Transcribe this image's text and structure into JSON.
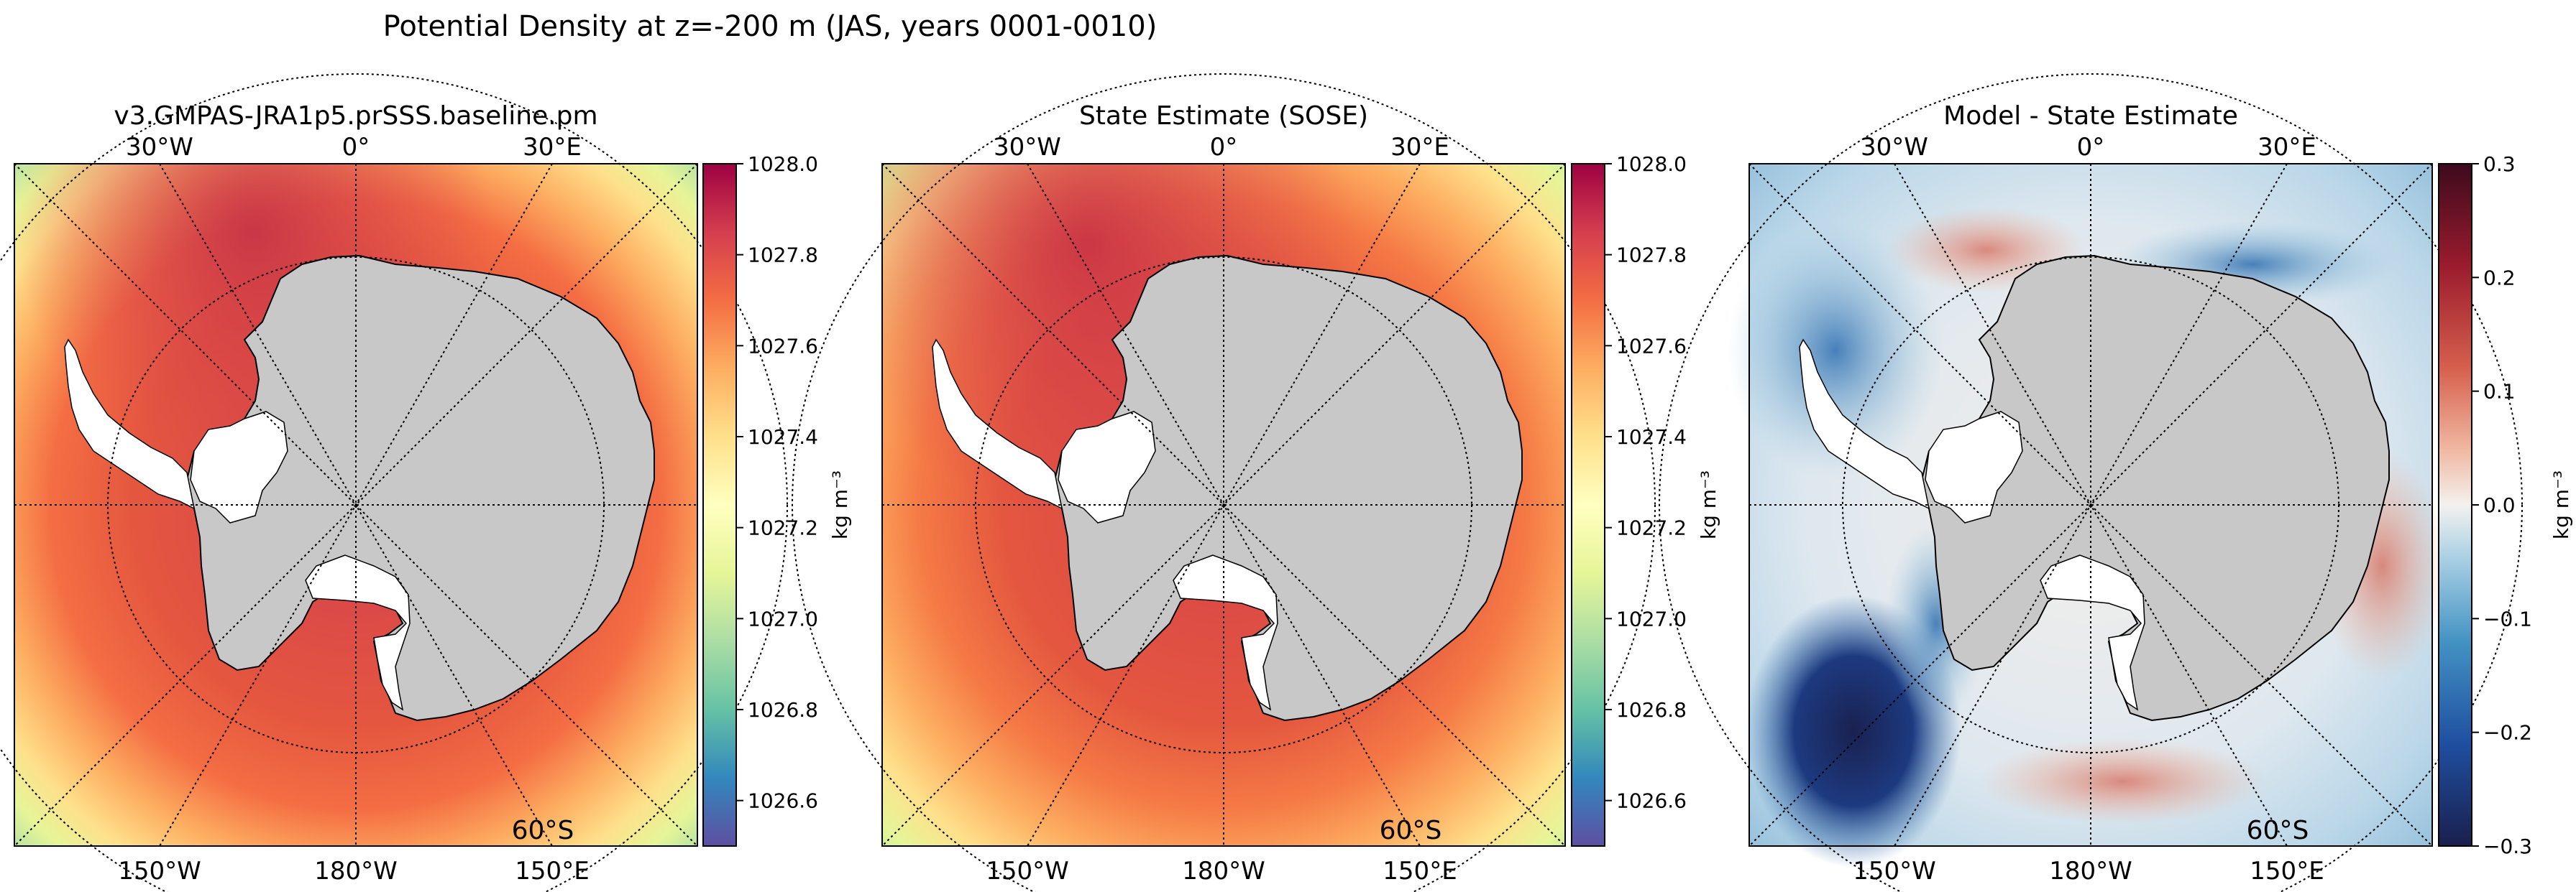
{
  "figure": {
    "suptitle": "Potential Density at z=-200 m (JAS, years 0001-0010)"
  },
  "chart_data": [
    {
      "type": "heatmap",
      "title": "v3.GMPAS-JRA1p5.prSSS.baseline.pm",
      "projection": "south polar stereographic",
      "top_lon_labels": [
        "30°W",
        "0°",
        "30°E"
      ],
      "bottom_lon_labels": [
        "150°W",
        "180°W",
        "150°E"
      ],
      "lat_label": "60°S",
      "colorbar": {
        "label": "kg m⁻³",
        "colormap": "Spectral_r",
        "range": [
          1026.5,
          1028.0
        ],
        "ticks": [
          "1026.6",
          "1026.8",
          "1027.0",
          "1027.2",
          "1027.4",
          "1027.6",
          "1027.8",
          "1028.0"
        ],
        "tick_values": [
          1026.6,
          1026.8,
          1027.0,
          1027.2,
          1027.4,
          1027.6,
          1027.8,
          1028.0
        ]
      }
    },
    {
      "type": "heatmap",
      "title": "State Estimate (SOSE)",
      "projection": "south polar stereographic",
      "top_lon_labels": [
        "30°W",
        "0°",
        "30°E"
      ],
      "bottom_lon_labels": [
        "150°W",
        "180°W",
        "150°E"
      ],
      "lat_label": "60°S",
      "colorbar": {
        "label": "kg m⁻³",
        "colormap": "Spectral_r",
        "range": [
          1026.5,
          1028.0
        ],
        "ticks": [
          "1026.6",
          "1026.8",
          "1027.0",
          "1027.2",
          "1027.4",
          "1027.6",
          "1027.8",
          "1028.0"
        ],
        "tick_values": [
          1026.6,
          1026.8,
          1027.0,
          1027.2,
          1027.4,
          1027.6,
          1027.8,
          1028.0
        ]
      }
    },
    {
      "type": "heatmap",
      "title": "Model - State Estimate",
      "projection": "south polar stereographic",
      "top_lon_labels": [
        "30°W",
        "0°",
        "30°E"
      ],
      "bottom_lon_labels": [
        "150°W",
        "180°W",
        "150°E"
      ],
      "lat_label": "60°S",
      "colorbar": {
        "label": "kg m⁻³",
        "colormap": "RdBu_r",
        "range": [
          -0.3,
          0.3
        ],
        "ticks": [
          "−0.3",
          "−0.2",
          "−0.1",
          "0.0",
          "0.1",
          "0.2",
          "0.3"
        ],
        "tick_values": [
          -0.3,
          -0.2,
          -0.1,
          0.0,
          0.1,
          0.2,
          0.3
        ]
      }
    }
  ],
  "colors": {
    "land": "#c8c8c8",
    "ice_shelf": "#ffffff",
    "graticule": "#000000"
  }
}
